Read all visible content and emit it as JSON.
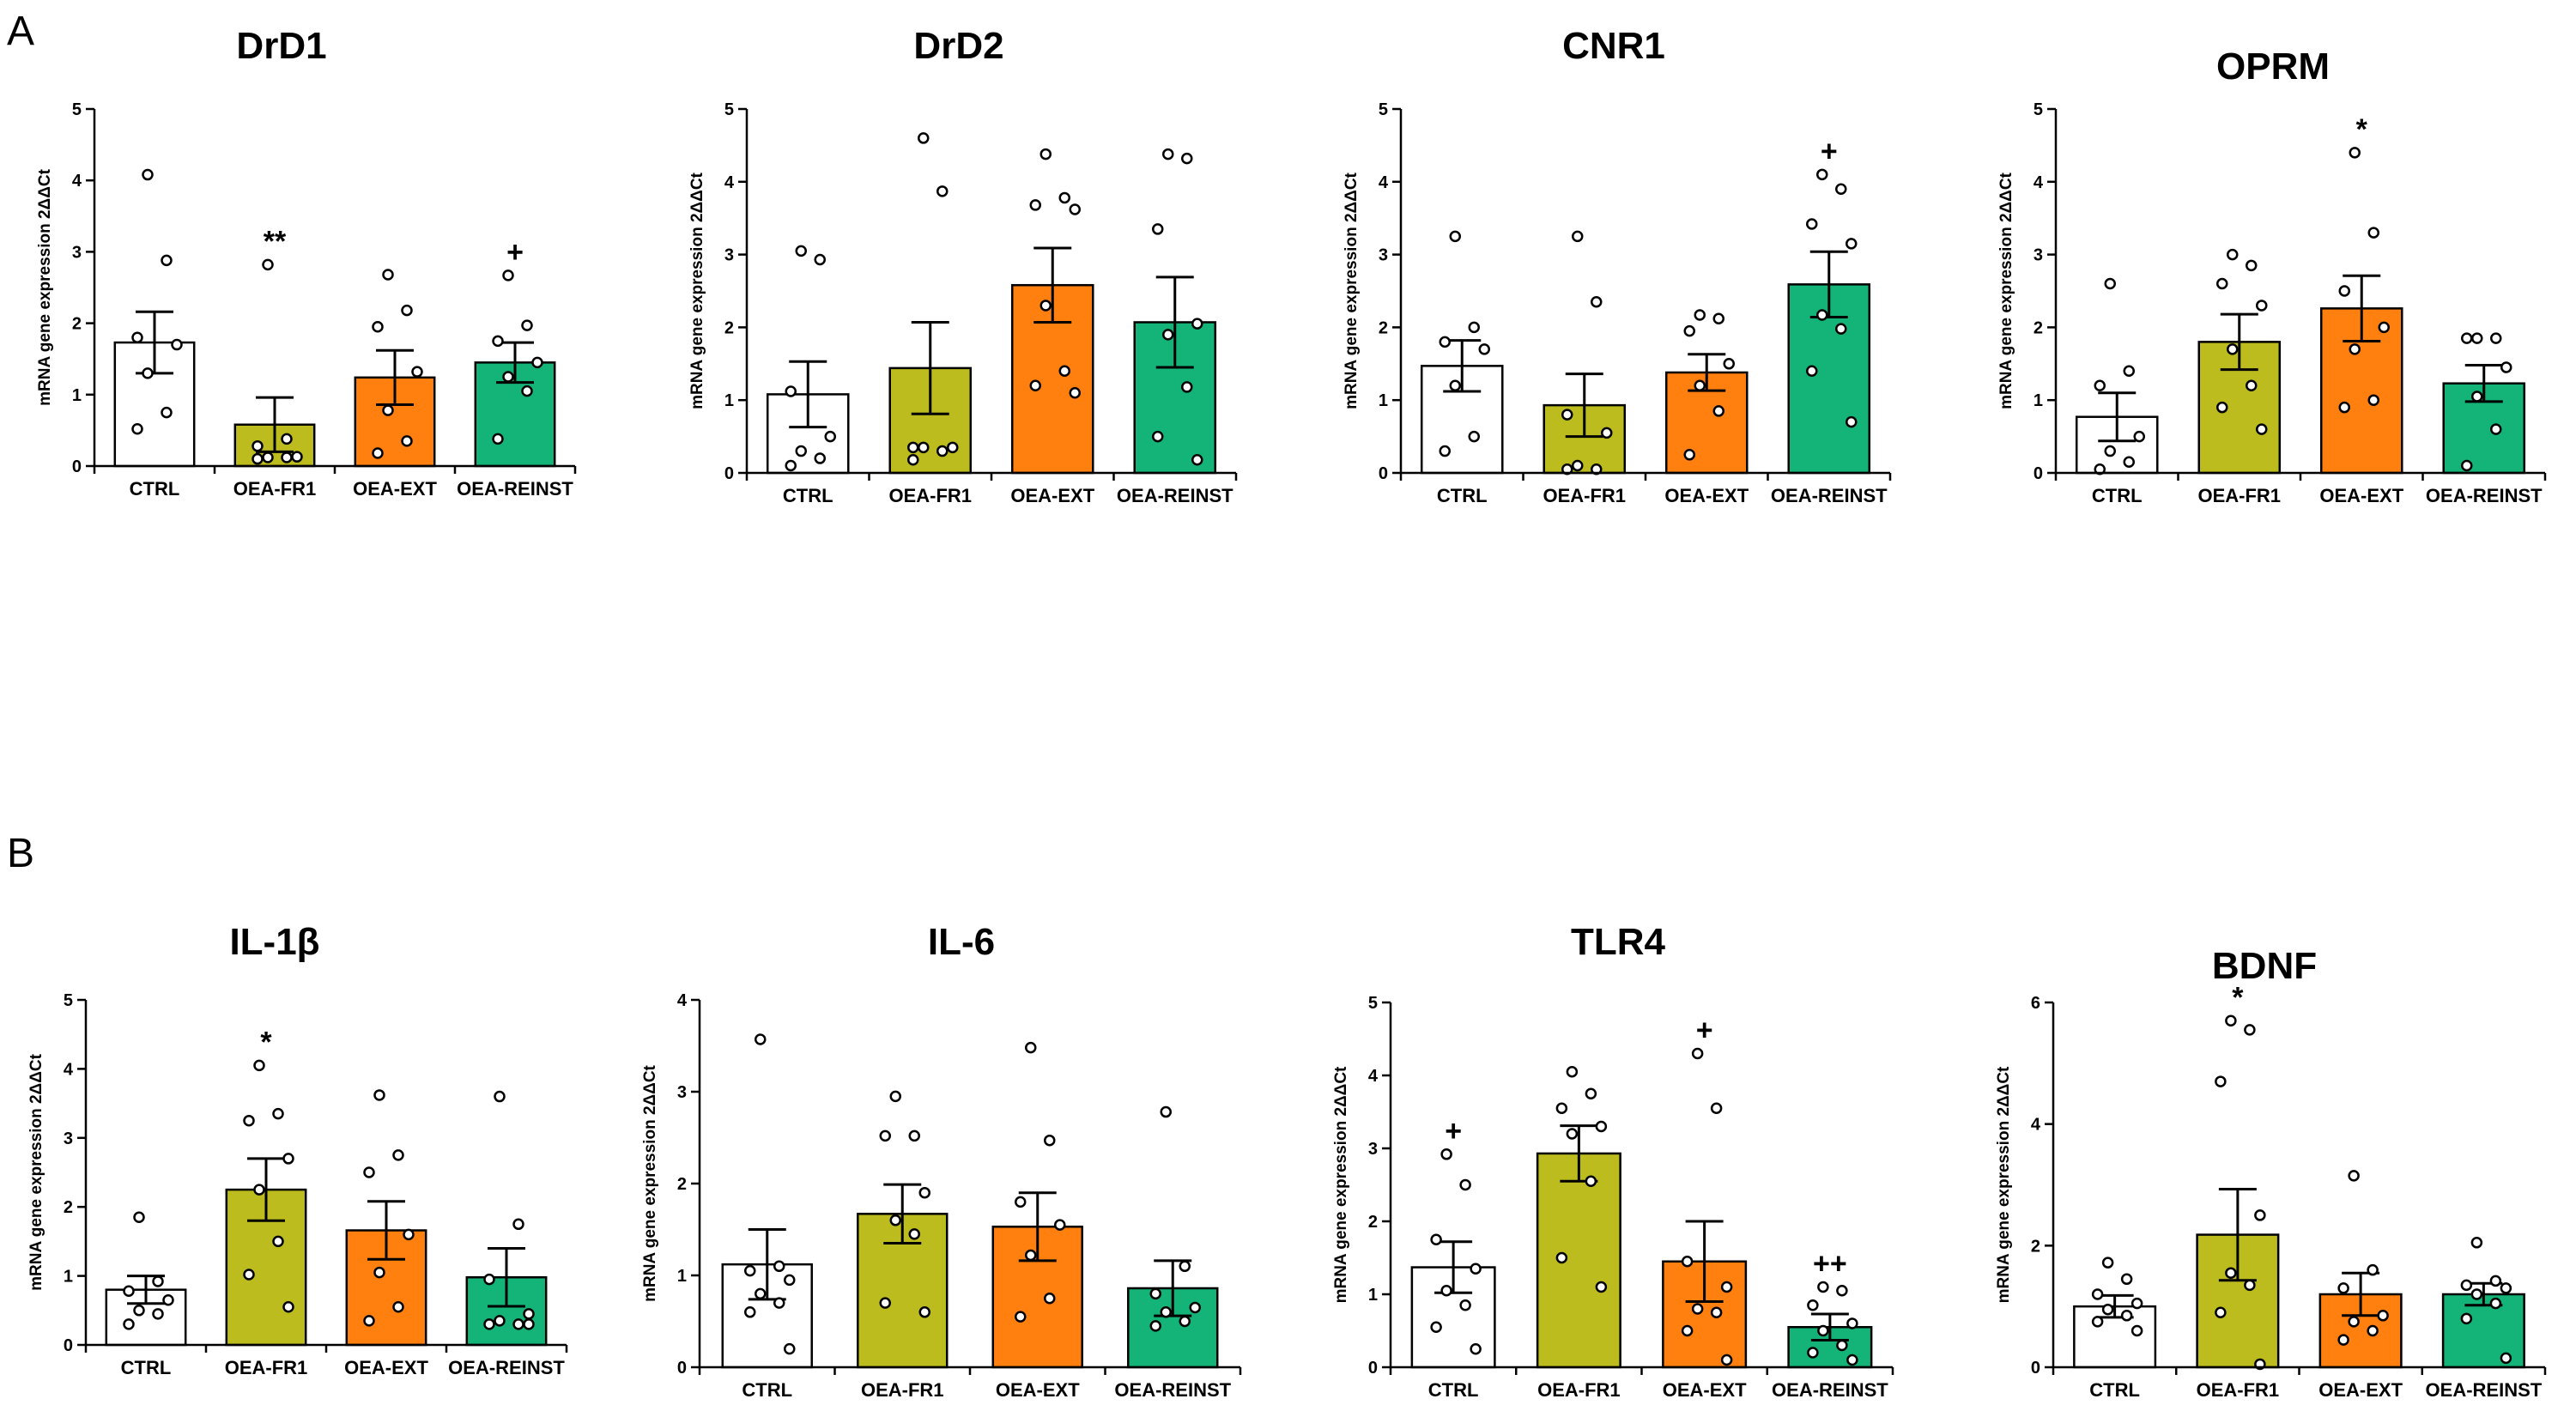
{
  "panels": [
    {
      "letter": "A"
    },
    {
      "letter": "B"
    }
  ],
  "colors": {
    "CTRL": "#ffffff",
    "OEA-FR1": "#bcbc1e",
    "OEA-EXT": "#ff7f0f",
    "OEA-REINST": "#14b377"
  },
  "chart_data": [
    {
      "type": "bar",
      "panel": "A",
      "title": "DrD1",
      "ylabel": "mRNA gene expression 2ΔΔCt",
      "xlabel": "",
      "categories": [
        "CTRL",
        "OEA-FR1",
        "OEA-EXT",
        "OEA-REINST"
      ],
      "values": [
        1.73,
        0.58,
        1.24,
        1.45
      ],
      "sem": [
        0.43,
        0.38,
        0.38,
        0.28
      ],
      "points": [
        [
          4.08,
          2.88,
          1.8,
          1.7,
          1.3,
          0.75,
          0.52
        ],
        [
          2.82,
          0.38,
          0.28,
          0.13,
          0.12,
          0.12,
          0.1
        ],
        [
          2.68,
          2.18,
          1.95,
          1.32,
          0.78,
          0.35,
          0.18
        ],
        [
          2.67,
          1.97,
          1.75,
          1.45,
          1.25,
          1.05,
          0.38
        ]
      ],
      "annotations": [
        "",
        "**",
        "",
        "+"
      ],
      "yticks": [
        0,
        1,
        2,
        3,
        4,
        5
      ],
      "ylim": [
        0,
        5
      ]
    },
    {
      "type": "bar",
      "panel": "A",
      "title": "DrD2",
      "ylabel": "mRNA gene expression 2ΔΔCt",
      "xlabel": "",
      "categories": [
        "CTRL",
        "OEA-FR1",
        "OEA-EXT",
        "OEA-REINST"
      ],
      "values": [
        1.08,
        1.44,
        2.58,
        2.07
      ],
      "sem": [
        0.45,
        0.63,
        0.51,
        0.62
      ],
      "points": [
        [
          3.05,
          2.93,
          1.12,
          0.5,
          0.3,
          0.2,
          0.1
        ],
        [
          4.6,
          3.87,
          0.35,
          0.35,
          0.35,
          0.3,
          0.18
        ],
        [
          4.38,
          3.78,
          3.68,
          3.62,
          2.3,
          1.4,
          1.2,
          1.1
        ],
        [
          4.38,
          4.32,
          3.35,
          2.05,
          1.9,
          1.18,
          0.5,
          0.18
        ]
      ],
      "annotations": [
        "",
        "",
        "",
        ""
      ],
      "yticks": [
        0,
        1,
        2,
        3,
        4,
        5
      ],
      "ylim": [
        0,
        5
      ]
    },
    {
      "type": "bar",
      "panel": "A",
      "title": "CNR1",
      "ylabel": "mRNA gene expression 2ΔΔCt",
      "xlabel": "",
      "categories": [
        "CTRL",
        "OEA-FR1",
        "OEA-EXT",
        "OEA-REINST"
      ],
      "values": [
        1.47,
        0.93,
        1.38,
        2.59
      ],
      "sem": [
        0.35,
        0.43,
        0.25,
        0.45
      ],
      "points": [
        [
          3.25,
          2.0,
          1.8,
          1.7,
          1.2,
          0.5,
          0.3
        ],
        [
          3.25,
          2.35,
          0.8,
          0.55,
          0.1,
          0.05,
          0.05
        ],
        [
          2.17,
          2.12,
          1.95,
          1.5,
          1.2,
          0.85,
          0.25
        ],
        [
          4.1,
          3.9,
          3.42,
          3.15,
          2.17,
          1.98,
          1.4,
          0.7
        ]
      ],
      "annotations": [
        "",
        "",
        "",
        "+"
      ],
      "yticks": [
        0,
        1,
        2,
        3,
        4,
        5
      ],
      "ylim": [
        0,
        5
      ]
    },
    {
      "type": "bar",
      "panel": "A",
      "title": "OPRM",
      "ylabel": "mRNA gene expression 2ΔΔCt",
      "xlabel": "",
      "categories": [
        "CTRL",
        "OEA-FR1",
        "OEA-EXT",
        "OEA-REINST"
      ],
      "values": [
        0.77,
        1.8,
        2.26,
        1.23
      ],
      "sem": [
        0.33,
        0.38,
        0.45,
        0.25
      ],
      "points": [
        [
          2.6,
          1.4,
          1.2,
          0.5,
          0.3,
          0.15,
          0.05
        ],
        [
          3.0,
          2.85,
          2.6,
          2.3,
          1.7,
          1.2,
          0.9,
          0.6
        ],
        [
          4.4,
          3.3,
          2.5,
          2.0,
          1.7,
          1.0,
          0.9
        ],
        [
          1.85,
          1.85,
          1.85,
          1.45,
          1.05,
          0.6,
          0.1
        ]
      ],
      "annotations": [
        "",
        "",
        "*",
        ""
      ],
      "yticks": [
        0,
        1,
        2,
        3,
        4,
        5
      ],
      "ylim": [
        0,
        5
      ]
    },
    {
      "type": "bar",
      "panel": "B",
      "title": "IL-1β",
      "ylabel": "mRNA gene expression 2ΔΔCt",
      "xlabel": "",
      "categories": [
        "CTRL",
        "OEA-FR1",
        "OEA-EXT",
        "OEA-REINST"
      ],
      "values": [
        0.8,
        2.25,
        1.66,
        0.98
      ],
      "sem": [
        0.2,
        0.45,
        0.42,
        0.42
      ],
      "points": [
        [
          1.85,
          0.92,
          0.78,
          0.65,
          0.5,
          0.45,
          0.3
        ],
        [
          4.05,
          3.35,
          3.25,
          2.7,
          2.25,
          1.5,
          1.02,
          0.55
        ],
        [
          3.62,
          2.75,
          2.5,
          1.6,
          1.05,
          0.55,
          0.35
        ],
        [
          3.6,
          1.75,
          0.95,
          0.45,
          0.35,
          0.3,
          0.3,
          0.3
        ]
      ],
      "annotations": [
        "",
        "*",
        "",
        ""
      ],
      "yticks": [
        0,
        1,
        2,
        3,
        4,
        5
      ],
      "ylim": [
        0,
        5
      ]
    },
    {
      "type": "bar",
      "panel": "B",
      "title": "IL-6",
      "ylabel": "mRNA gene expression 2ΔΔCt",
      "xlabel": "",
      "categories": [
        "CTRL",
        "OEA-FR1",
        "OEA-EXT",
        "OEA-REINST"
      ],
      "values": [
        1.12,
        1.67,
        1.53,
        0.86
      ],
      "sem": [
        0.38,
        0.32,
        0.37,
        0.3
      ],
      "points": [
        [
          3.57,
          1.1,
          1.05,
          0.95,
          0.8,
          0.7,
          0.6,
          0.2
        ],
        [
          2.95,
          2.52,
          2.52,
          1.9,
          1.6,
          1.45,
          0.7,
          0.6
        ],
        [
          3.48,
          2.47,
          1.8,
          1.55,
          1.22,
          0.75,
          0.55
        ],
        [
          2.78,
          1.1,
          0.8,
          0.65,
          0.6,
          0.5,
          0.45
        ]
      ],
      "annotations": [
        "",
        "",
        "",
        ""
      ],
      "yticks": [
        0,
        1,
        2,
        3,
        4
      ],
      "ylim": [
        0,
        4
      ]
    },
    {
      "type": "bar",
      "panel": "B",
      "title": "TLR4",
      "ylabel": "mRNA gene expression 2ΔΔCt",
      "xlabel": "",
      "categories": [
        "CTRL",
        "OEA-FR1",
        "OEA-EXT",
        "OEA-REINST"
      ],
      "values": [
        1.37,
        2.93,
        1.45,
        0.55
      ],
      "sem": [
        0.35,
        0.38,
        0.55,
        0.18
      ],
      "points": [
        [
          2.92,
          2.5,
          1.75,
          1.35,
          1.05,
          0.85,
          0.55,
          0.25
        ],
        [
          4.05,
          3.75,
          3.55,
          3.3,
          3.2,
          2.55,
          1.5,
          1.1
        ],
        [
          4.3,
          3.55,
          1.45,
          1.1,
          0.8,
          0.75,
          0.5,
          0.1
        ],
        [
          1.1,
          1.05,
          0.85,
          0.6,
          0.5,
          0.3,
          0.2,
          0.1
        ]
      ],
      "annotations": [
        "+",
        "",
        "+",
        "++"
      ],
      "yticks": [
        0,
        1,
        2,
        3,
        4,
        5
      ],
      "ylim": [
        0,
        5
      ]
    },
    {
      "type": "bar",
      "panel": "B",
      "title": "BDNF",
      "ylabel": "mRNA gene expression 2ΔΔCt",
      "xlabel": "",
      "categories": [
        "CTRL",
        "OEA-FR1",
        "OEA-EXT",
        "OEA-REINST"
      ],
      "values": [
        1.0,
        2.18,
        1.2,
        1.2
      ],
      "sem": [
        0.18,
        0.75,
        0.35,
        0.18
      ],
      "points": [
        [
          1.72,
          1.45,
          1.2,
          1.05,
          0.95,
          0.85,
          0.75,
          0.6
        ],
        [
          5.7,
          5.55,
          4.7,
          2.5,
          1.55,
          1.35,
          0.9,
          0.05
        ],
        [
          3.15,
          1.6,
          1.3,
          0.85,
          0.75,
          0.6,
          0.45
        ],
        [
          2.05,
          1.42,
          1.35,
          1.3,
          1.2,
          1.05,
          0.8,
          0.15
        ]
      ],
      "annotations": [
        "",
        "*",
        "",
        ""
      ],
      "yticks": [
        0,
        2,
        4,
        6
      ],
      "ylim": [
        0,
        6
      ]
    }
  ]
}
